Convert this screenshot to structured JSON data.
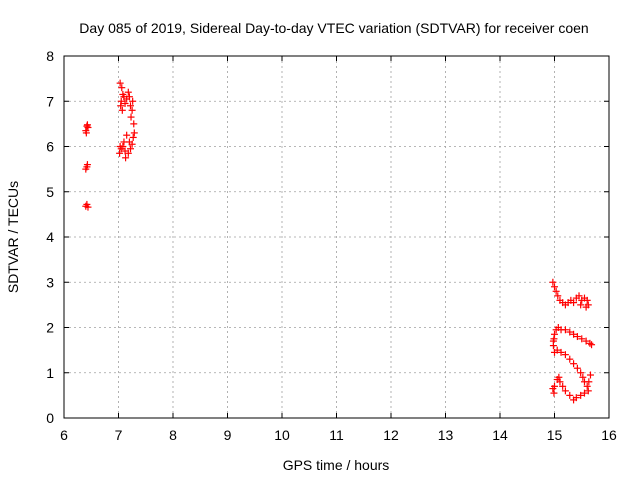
{
  "chart_data": {
    "type": "scatter",
    "title": "Day 085 of 2019, Sidereal Day-to-day VTEC variation (SDTVAR) for receiver coen",
    "xlabel": "GPS time / hours",
    "ylabel": "SDTVAR / TECUs",
    "xlim": [
      6,
      16
    ],
    "ylim": [
      0,
      8
    ],
    "xticks": [
      "6",
      "7",
      "8",
      "9",
      "10",
      "11",
      "12",
      "13",
      "14",
      "15",
      "16"
    ],
    "yticks": [
      "0",
      "1",
      "2",
      "3",
      "4",
      "5",
      "6",
      "7",
      "8"
    ],
    "grid": true,
    "marker": "plus",
    "color": "#ff0000",
    "series": [
      {
        "points": [
          [
            6.4,
            6.35
          ],
          [
            6.42,
            6.45
          ],
          [
            6.44,
            6.42
          ],
          [
            6.41,
            6.3
          ],
          [
            6.43,
            6.48
          ],
          [
            6.4,
            5.5
          ],
          [
            6.43,
            5.6
          ],
          [
            6.42,
            5.55
          ],
          [
            6.4,
            4.68
          ],
          [
            6.42,
            4.72
          ],
          [
            6.44,
            4.66
          ],
          [
            7.03,
            7.4
          ],
          [
            7.06,
            7.3
          ],
          [
            7.08,
            7.15
          ],
          [
            7.05,
            7.0
          ],
          [
            7.1,
            7.1
          ],
          [
            7.12,
            6.95
          ],
          [
            7.15,
            7.05
          ],
          [
            7.18,
            7.2
          ],
          [
            7.2,
            7.1
          ],
          [
            7.22,
            6.9
          ],
          [
            7.25,
            6.8
          ],
          [
            7.23,
            6.65
          ],
          [
            7.26,
            7.0
          ],
          [
            7.28,
            6.5
          ],
          [
            7.29,
            6.3
          ],
          [
            7.27,
            6.2
          ],
          [
            7.25,
            6.05
          ],
          [
            7.22,
            5.95
          ],
          [
            7.18,
            5.85
          ],
          [
            7.12,
            5.9
          ],
          [
            7.08,
            6.0
          ],
          [
            7.05,
            5.95
          ],
          [
            7.1,
            6.1
          ],
          [
            7.15,
            6.25
          ],
          [
            7.2,
            6.1
          ],
          [
            7.03,
            6.0
          ],
          [
            7.02,
            5.85
          ],
          [
            7.13,
            5.75
          ],
          [
            7.07,
            6.8
          ],
          [
            7.04,
            6.9
          ],
          [
            14.97,
            3.0
          ],
          [
            15.0,
            2.9
          ],
          [
            15.03,
            2.8
          ],
          [
            15.06,
            2.7
          ],
          [
            15.1,
            2.6
          ],
          [
            15.15,
            2.55
          ],
          [
            15.2,
            2.5
          ],
          [
            15.25,
            2.55
          ],
          [
            15.3,
            2.6
          ],
          [
            15.35,
            2.55
          ],
          [
            15.4,
            2.65
          ],
          [
            15.45,
            2.7
          ],
          [
            15.5,
            2.6
          ],
          [
            15.55,
            2.65
          ],
          [
            15.6,
            2.6
          ],
          [
            15.62,
            2.5
          ],
          [
            15.58,
            2.45
          ],
          [
            15.48,
            2.5
          ],
          [
            14.98,
            1.7
          ],
          [
            15.0,
            1.85
          ],
          [
            15.03,
            1.95
          ],
          [
            15.07,
            2.0
          ],
          [
            15.12,
            1.95
          ],
          [
            15.2,
            1.95
          ],
          [
            15.28,
            1.9
          ],
          [
            15.35,
            1.85
          ],
          [
            15.42,
            1.8
          ],
          [
            15.5,
            1.75
          ],
          [
            15.58,
            1.7
          ],
          [
            15.65,
            1.65
          ],
          [
            15.68,
            1.62
          ],
          [
            14.98,
            1.6
          ],
          [
            14.99,
            1.75
          ],
          [
            15.0,
            1.45
          ],
          [
            15.05,
            1.5
          ],
          [
            15.12,
            1.45
          ],
          [
            15.2,
            1.4
          ],
          [
            15.28,
            1.3
          ],
          [
            15.35,
            1.2
          ],
          [
            15.42,
            1.1
          ],
          [
            15.48,
            1.0
          ],
          [
            15.52,
            0.9
          ],
          [
            15.55,
            0.8
          ],
          [
            15.6,
            0.7
          ],
          [
            15.63,
            0.8
          ],
          [
            15.66,
            0.95
          ],
          [
            15.62,
            0.6
          ],
          [
            15.55,
            0.55
          ],
          [
            15.48,
            0.5
          ],
          [
            15.4,
            0.45
          ],
          [
            15.35,
            0.4
          ],
          [
            15.28,
            0.5
          ],
          [
            15.2,
            0.6
          ],
          [
            15.15,
            0.7
          ],
          [
            15.1,
            0.8
          ],
          [
            15.08,
            0.9
          ],
          [
            15.05,
            0.85
          ],
          [
            15.0,
            0.7
          ],
          [
            14.97,
            0.65
          ],
          [
            14.99,
            0.55
          ]
        ]
      }
    ]
  }
}
